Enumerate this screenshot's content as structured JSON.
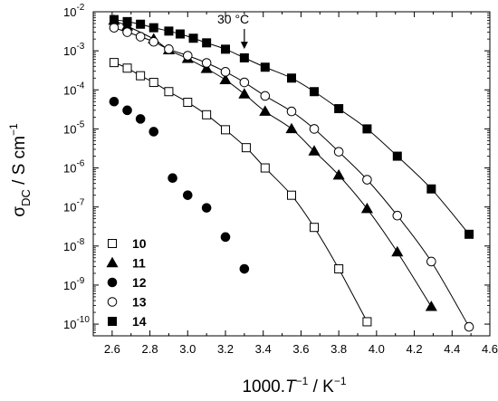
{
  "chart_data": {
    "type": "scatter",
    "xlabel": {
      "main": "1000.",
      "italic": "T",
      "sup1": "−1",
      "mid": " / K",
      "sup2": "−1"
    },
    "ylabel": {
      "sigma": "σ",
      "sub": "DC",
      "mid": " / S cm",
      "sup": "−1"
    },
    "xlim": [
      2.5,
      4.6
    ],
    "ylim_log10": [
      -10.3,
      -2
    ],
    "y_scale": "log",
    "x_ticks": [
      "2.6",
      "2.8",
      "3.0",
      "3.2",
      "3.4",
      "3.6",
      "3.8",
      "4.0",
      "4.2",
      "4.4",
      "4.6"
    ],
    "x_tick_values": [
      2.6,
      2.8,
      3.0,
      3.2,
      3.4,
      3.6,
      3.8,
      4.0,
      4.2,
      4.4,
      4.6
    ],
    "y_ticks": [
      {
        "exp": -10,
        "base": "10",
        "sup": "-10"
      },
      {
        "exp": -9,
        "base": "10",
        "sup": "-9"
      },
      {
        "exp": -8,
        "base": "10",
        "sup": "-8"
      },
      {
        "exp": -7,
        "base": "10",
        "sup": "-7"
      },
      {
        "exp": -6,
        "base": "10",
        "sup": "-6"
      },
      {
        "exp": -5,
        "base": "10",
        "sup": "-5"
      },
      {
        "exp": -4,
        "base": "10",
        "sup": "-4"
      },
      {
        "exp": -3,
        "base": "10",
        "sup": "-3"
      },
      {
        "exp": -2,
        "base": "10",
        "sup": "-2"
      }
    ],
    "annotation": {
      "text": "30 °C",
      "x": 3.3,
      "arrow_to_y": 0.0009
    },
    "legend_position": "lower-left",
    "series": [
      {
        "name": "10",
        "marker": "square-open",
        "fit": true,
        "x": [
          2.61,
          2.68,
          2.75,
          2.82,
          2.9,
          3.0,
          3.1,
          3.2,
          3.31,
          3.41,
          3.55,
          3.67,
          3.8,
          3.95
        ],
        "y": [
          0.0005,
          0.00036,
          0.00023,
          0.000155,
          9e-05,
          4.8e-05,
          2.3e-05,
          9.5e-06,
          3.3e-06,
          1e-06,
          2e-07,
          3e-08,
          2.6e-09,
          1.15e-10
        ]
      },
      {
        "name": "11",
        "marker": "triangle-filled",
        "fit": true,
        "x": [
          2.61,
          2.68,
          2.82,
          2.9,
          3.0,
          3.1,
          3.2,
          3.3,
          3.41,
          3.55,
          3.67,
          3.8,
          3.95,
          4.11,
          4.29
        ],
        "y": [
          0.006,
          0.0043,
          0.002,
          0.00105,
          0.00063,
          0.00035,
          0.00018,
          7.8e-05,
          2.8e-05,
          1e-05,
          2.7e-06,
          6.5e-07,
          9e-08,
          7e-09,
          2.8e-10
        ]
      },
      {
        "name": "12",
        "marker": "circle-filled",
        "fit": false,
        "x": [
          2.61,
          2.68,
          2.75,
          2.82,
          2.92,
          3.0,
          3.1,
          3.2,
          3.3
        ],
        "y": [
          5e-05,
          3e-05,
          1.8e-05,
          8.5e-06,
          5.5e-07,
          2e-07,
          9.5e-08,
          1.7e-08,
          2.6e-09
        ]
      },
      {
        "name": "13",
        "marker": "circle-open",
        "fit": true,
        "x": [
          2.61,
          2.68,
          2.75,
          2.82,
          2.9,
          3.0,
          3.1,
          3.2,
          3.3,
          3.41,
          3.55,
          3.67,
          3.8,
          3.95,
          4.11,
          4.29,
          4.49
        ],
        "y": [
          0.0039,
          0.003,
          0.0023,
          0.0017,
          0.0011,
          0.00075,
          0.00049,
          0.00029,
          0.000155,
          7e-05,
          2.8e-05,
          1e-05,
          2.6e-06,
          5e-07,
          6e-08,
          4e-09,
          8.5e-11
        ]
      },
      {
        "name": "14",
        "marker": "square-filled",
        "fit": true,
        "x": [
          2.61,
          2.68,
          2.75,
          2.82,
          2.9,
          2.96,
          3.03,
          3.1,
          3.2,
          3.3,
          3.41,
          3.55,
          3.67,
          3.8,
          3.95,
          4.11,
          4.29,
          4.49
        ],
        "y": [
          0.0063,
          0.0056,
          0.0048,
          0.0039,
          0.0032,
          0.0027,
          0.0021,
          0.0016,
          0.0011,
          0.00066,
          0.00038,
          0.0002,
          9e-05,
          3.3e-05,
          1e-05,
          2e-06,
          2.9e-07,
          2e-08
        ]
      }
    ]
  }
}
